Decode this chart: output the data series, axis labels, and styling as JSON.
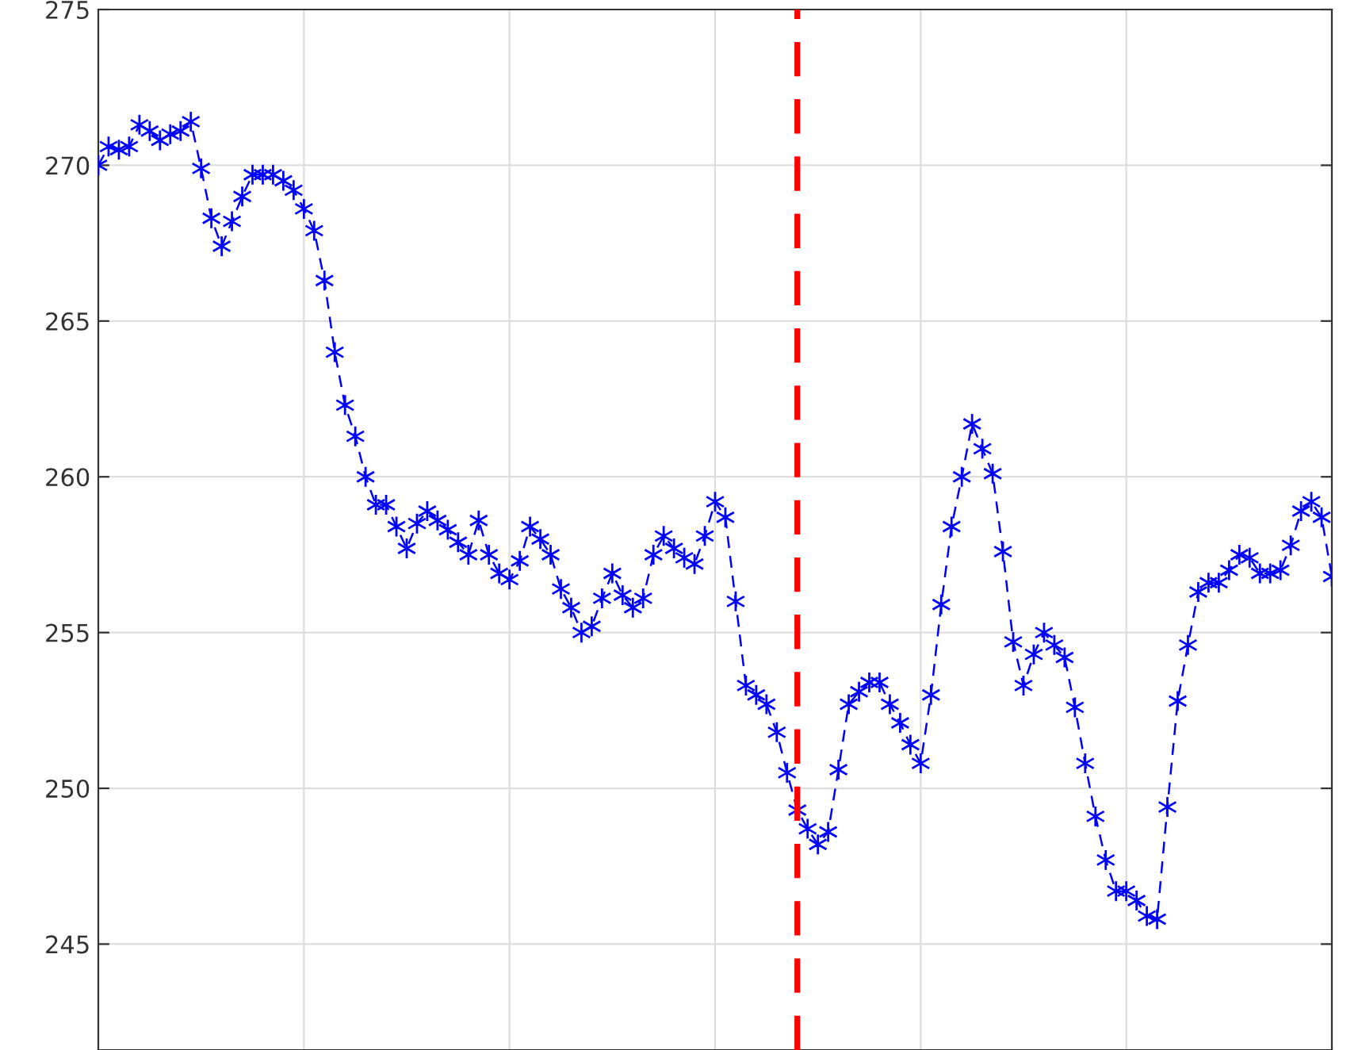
{
  "chart_data": {
    "type": "line",
    "categories": [
      null,
      null,
      null,
      null,
      null,
      null,
      null,
      null,
      null,
      null,
      null,
      null,
      null,
      null,
      null,
      null,
      null,
      null,
      null,
      null,
      null,
      null,
      null,
      null,
      null,
      null,
      null,
      null,
      null,
      null,
      null,
      null,
      null,
      null,
      null,
      null,
      null,
      null,
      null,
      null,
      null,
      null,
      null,
      null,
      null,
      null,
      null,
      null,
      null,
      null,
      null,
      null,
      null,
      null,
      null,
      null,
      null,
      null,
      null,
      null,
      null,
      null,
      null,
      null,
      null,
      null,
      null,
      null,
      null,
      null,
      null,
      null,
      null,
      null,
      null,
      null,
      null,
      null,
      null,
      null,
      null,
      null,
      null,
      null,
      null,
      null,
      null,
      null,
      null,
      null,
      null,
      null,
      null,
      null,
      null,
      null,
      null,
      null,
      null,
      null,
      null,
      null,
      null,
      null,
      null,
      null,
      null,
      null,
      null,
      null,
      null,
      null,
      null,
      null,
      null,
      null,
      null,
      null,
      null,
      null,
      null
    ],
    "series": [
      {
        "color": "#0000ff",
        "values": [
          270.0,
          270.6,
          270.5,
          270.6,
          271.3,
          271.1,
          270.8,
          271.0,
          271.1,
          271.4,
          269.9,
          268.3,
          267.4,
          268.2,
          269.0,
          269.7,
          269.7,
          269.7,
          269.5,
          269.2,
          268.6,
          267.9,
          266.3,
          264.0,
          262.3,
          261.3,
          260.0,
          259.1,
          259.1,
          258.4,
          257.7,
          258.5,
          258.9,
          258.6,
          258.3,
          257.9,
          257.5,
          258.6,
          257.5,
          256.9,
          256.7,
          257.3,
          258.4,
          258.0,
          257.5,
          256.4,
          255.8,
          255.0,
          255.2,
          256.1,
          256.9,
          256.2,
          255.8,
          256.1,
          257.5,
          258.1,
          257.7,
          257.4,
          257.2,
          258.1,
          259.2,
          258.7,
          256.0,
          253.3,
          253.0,
          252.7,
          251.8,
          250.5,
          249.3,
          248.7,
          248.2,
          248.6,
          250.6,
          252.7,
          253.1,
          253.4,
          253.4,
          252.7,
          252.1,
          251.4,
          250.8,
          253.0,
          255.9,
          258.4,
          260.0,
          261.7,
          260.9,
          260.1,
          257.6,
          254.7,
          253.3,
          254.3,
          255.0,
          254.6,
          254.2,
          252.6,
          250.8,
          249.1,
          247.7,
          246.7,
          246.7,
          246.4,
          245.9,
          245.8,
          249.4,
          252.8,
          254.6,
          256.3,
          256.6,
          256.6,
          257.0,
          257.5,
          257.4,
          256.9,
          256.9,
          257.0,
          257.8,
          258.9,
          259.2,
          258.7,
          256.8
        ]
      }
    ],
    "ylim": [
      241.6,
      275
    ],
    "yticks": [
      245,
      250,
      255,
      260,
      265,
      270,
      275
    ],
    "grid": true,
    "marker": "cross",
    "line_style": "dashed"
  }
}
